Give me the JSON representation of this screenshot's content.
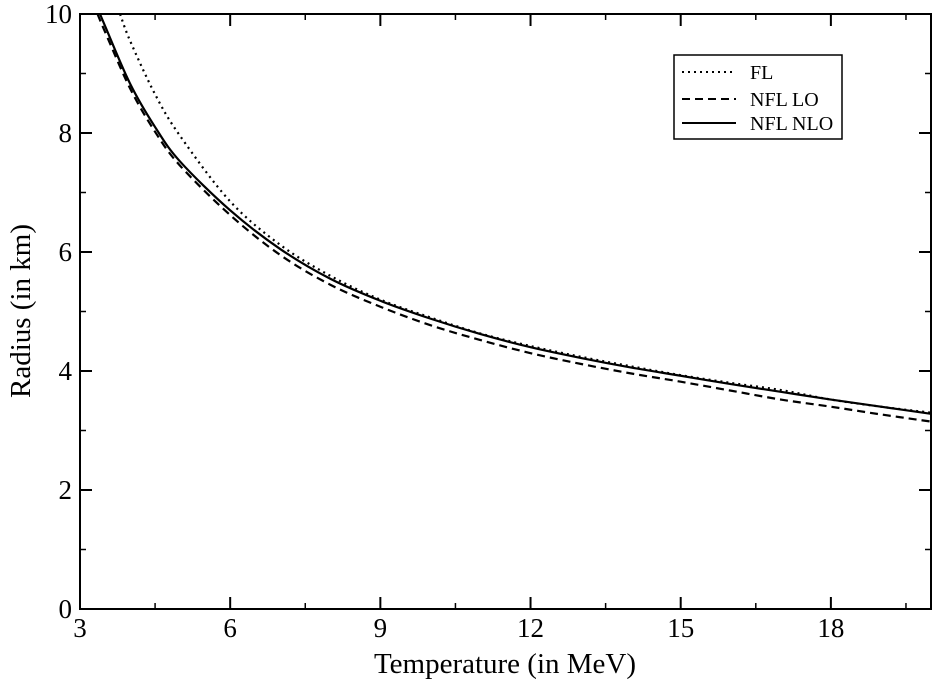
{
  "chart_data": {
    "type": "line",
    "xlabel": "Temperature (in MeV)",
    "ylabel": "Radius (in km)",
    "xlim": [
      3,
      20
    ],
    "ylim": [
      0,
      10
    ],
    "x_ticks": [
      3,
      6,
      9,
      12,
      15,
      18
    ],
    "y_ticks": [
      0,
      2,
      4,
      6,
      8,
      10
    ],
    "x_tick_labels": [
      "3",
      "6",
      "9",
      "12",
      "15",
      "18"
    ],
    "y_tick_labels": [
      "0",
      "2",
      "4",
      "6",
      "8",
      "10"
    ],
    "x_minor_step": 1.5,
    "y_minor_step": 1,
    "grid": false,
    "legend_position": "top-right",
    "series": [
      {
        "name": "FL",
        "style": "dotted",
        "color": "#000000",
        "x": [
          3.8,
          4,
          4.5,
          5,
          6,
          7,
          8,
          9,
          10,
          11,
          12,
          13,
          14,
          15,
          16,
          17,
          18,
          19,
          20
        ],
        "y": [
          10.0,
          9.55,
          8.65,
          7.95,
          6.85,
          6.12,
          5.6,
          5.2,
          4.9,
          4.63,
          4.42,
          4.24,
          4.08,
          3.93,
          3.8,
          3.68,
          3.52,
          3.4,
          3.3
        ]
      },
      {
        "name": "NFL LO",
        "style": "dashed",
        "color": "#000000",
        "x": [
          3.35,
          3.5,
          4,
          4.5,
          5,
          6,
          7,
          8,
          9,
          10,
          11,
          12,
          13,
          14,
          15,
          16,
          17,
          18,
          19,
          20
        ],
        "y": [
          10.0,
          9.7,
          8.75,
          8.02,
          7.45,
          6.62,
          5.95,
          5.45,
          5.08,
          4.77,
          4.52,
          4.3,
          4.12,
          3.96,
          3.82,
          3.67,
          3.52,
          3.4,
          3.27,
          3.15
        ]
      },
      {
        "name": "NFL NLO",
        "style": "solid",
        "color": "#000000",
        "x": [
          3.4,
          3.5,
          4,
          4.5,
          5,
          6,
          7,
          8,
          9,
          10,
          11,
          12,
          13,
          14,
          15,
          16,
          17,
          18,
          19,
          20
        ],
        "y": [
          10.0,
          9.8,
          8.83,
          8.1,
          7.52,
          6.7,
          6.05,
          5.55,
          5.18,
          4.88,
          4.62,
          4.4,
          4.22,
          4.06,
          3.92,
          3.78,
          3.65,
          3.52,
          3.4,
          3.28
        ]
      }
    ]
  }
}
